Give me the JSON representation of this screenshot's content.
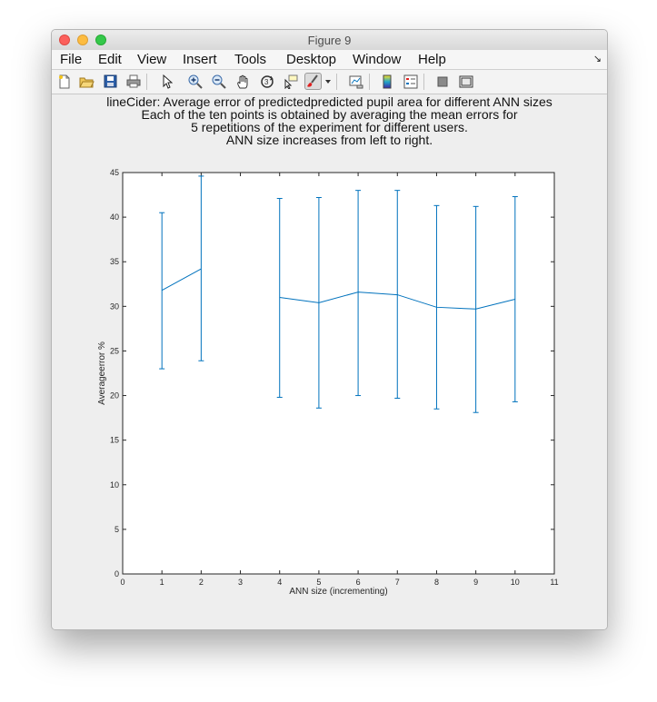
{
  "window": {
    "title": "Figure 9"
  },
  "menubar": {
    "items": [
      "File",
      "Edit",
      "View",
      "Insert",
      "Tools",
      "Desktop",
      "Window",
      "Help"
    ],
    "overflow_icon": "corner-arrow-icon"
  },
  "toolbar": {
    "icons": [
      "new-figure-icon",
      "open-file-icon",
      "save-icon",
      "print-icon",
      "pointer-icon",
      "zoom-in-icon",
      "zoom-out-icon",
      "pan-hand-icon",
      "rotate-3d-icon",
      "data-cursor-icon",
      "brush-icon",
      "brush-dropdown-icon",
      "link-plot-icon",
      "colorbar-icon",
      "legend-icon",
      "hide-plot-tools-icon",
      "show-plot-tools-icon"
    ],
    "active_icon": "brush-icon"
  },
  "chart_data": {
    "type": "line",
    "title_lines": [
      "lineCider: Average error of predictedpredicted pupil area for different ANN sizes",
      "Each of the ten points is obtained by averaging the mean errors for",
      "5 repetitions of the experiment for different users.",
      "ANN size increases from left to right."
    ],
    "xlabel": "ANN size (incrementing)",
    "ylabel": "Averageerror %",
    "xlim": [
      0,
      11
    ],
    "ylim": [
      0,
      45
    ],
    "xticks": [
      0,
      1,
      2,
      3,
      4,
      5,
      6,
      7,
      8,
      9,
      10,
      11
    ],
    "yticks": [
      0,
      5,
      10,
      15,
      20,
      25,
      30,
      35,
      40,
      45
    ],
    "line_color": "#0072bd",
    "grid": false,
    "segments": [
      [
        {
          "x": 1,
          "y": 31.8,
          "low": 23.0,
          "high": 40.5
        },
        {
          "x": 2,
          "y": 34.2,
          "low": 23.9,
          "high": 44.6
        }
      ],
      [
        {
          "x": 4,
          "y": 31.0,
          "low": 19.8,
          "high": 42.1
        },
        {
          "x": 5,
          "y": 30.4,
          "low": 18.6,
          "high": 42.2
        },
        {
          "x": 6,
          "y": 31.6,
          "low": 20.0,
          "high": 43.0
        },
        {
          "x": 7,
          "y": 31.3,
          "low": 19.7,
          "high": 43.0
        },
        {
          "x": 8,
          "y": 29.9,
          "low": 18.5,
          "high": 41.3
        },
        {
          "x": 9,
          "y": 29.7,
          "low": 18.1,
          "high": 41.2
        },
        {
          "x": 10,
          "y": 30.8,
          "low": 19.3,
          "high": 42.3
        }
      ]
    ]
  }
}
